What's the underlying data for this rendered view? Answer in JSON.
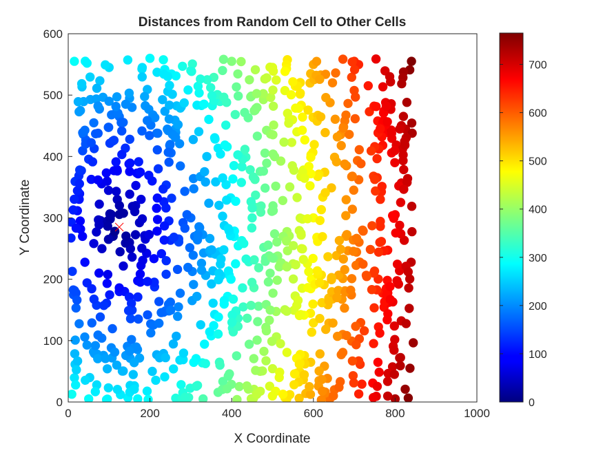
{
  "chart_data": {
    "type": "scatter",
    "title": "Distances from Random Cell to Other Cells",
    "xlabel": "X Coordinate",
    "ylabel": "Y Coordinate",
    "xlim": [
      0,
      1000
    ],
    "ylim": [
      0,
      600
    ],
    "xticks": [
      "0",
      "200",
      "400",
      "600",
      "800",
      "1000"
    ],
    "yticks": [
      "0",
      "100",
      "200",
      "300",
      "400",
      "500",
      "600"
    ],
    "colormap": "jet",
    "color_range": [
      0,
      765
    ],
    "colorbar_ticks": [
      "0",
      "100",
      "200",
      "300",
      "400",
      "500",
      "600",
      "700"
    ],
    "colorbar_location": "right",
    "grid": false,
    "reference_point": {
      "x": 125,
      "y": 285,
      "marker": "x",
      "color": "#ff0000"
    },
    "point_count": 1000,
    "x_range_of_points": [
      5,
      845
    ],
    "y_range_of_points": [
      3,
      560
    ],
    "color_encodes": "distance from reference point",
    "points_sample": [
      {
        "x": 15,
        "y": 555
      },
      {
        "x": 100,
        "y": 545
      },
      {
        "x": 200,
        "y": 560
      },
      {
        "x": 300,
        "y": 540
      },
      {
        "x": 400,
        "y": 555
      },
      {
        "x": 500,
        "y": 545
      },
      {
        "x": 600,
        "y": 550
      },
      {
        "x": 700,
        "y": 555
      },
      {
        "x": 840,
        "y": 555
      },
      {
        "x": 120,
        "y": 330
      },
      {
        "x": 110,
        "y": 270
      },
      {
        "x": 150,
        "y": 260
      },
      {
        "x": 300,
        "y": 300
      },
      {
        "x": 450,
        "y": 300
      },
      {
        "x": 600,
        "y": 300
      },
      {
        "x": 800,
        "y": 305
      },
      {
        "x": 50,
        "y": 5
      },
      {
        "x": 170,
        "y": 5
      },
      {
        "x": 330,
        "y": 5
      },
      {
        "x": 640,
        "y": 5
      },
      {
        "x": 800,
        "y": 5
      }
    ]
  }
}
